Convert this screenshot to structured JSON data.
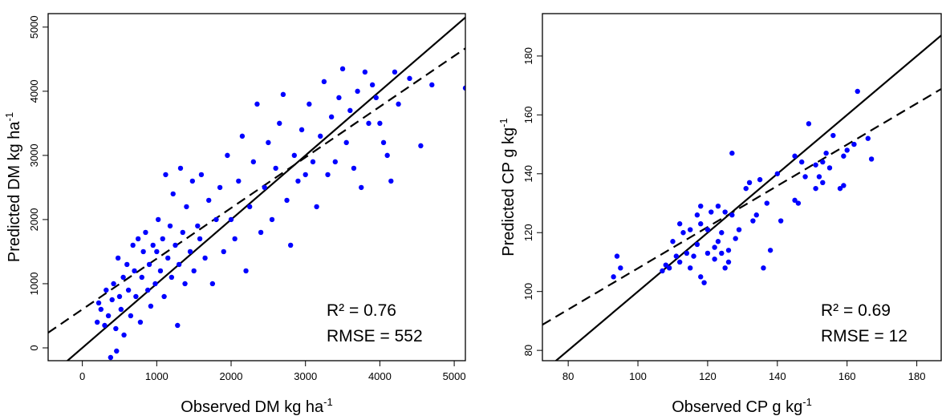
{
  "chart_data": [
    {
      "type": "scatter",
      "color": "#0000ff",
      "xlabel": {
        "text": "Observed DM kg ha",
        "sup": "-1"
      },
      "ylabel": {
        "text": "Predicted DM kg ha",
        "sup": "-1"
      },
      "annotations": [
        "R² = 0.76",
        "RMSE = 552"
      ],
      "xlim": [
        -460,
        5150
      ],
      "ylim": [
        -200,
        5210
      ],
      "xticks": [
        0,
        1000,
        2000,
        3000,
        4000,
        5000
      ],
      "yticks": [
        0,
        1000,
        2000,
        3000,
        4000,
        5000
      ],
      "lines": [
        {
          "slope": 1,
          "intercept": 0,
          "dashed": false
        },
        {
          "slope": 0.79,
          "intercept": 600,
          "dashed": true
        }
      ],
      "x": [
        200,
        220,
        250,
        300,
        320,
        350,
        380,
        400,
        420,
        450,
        460,
        480,
        500,
        520,
        550,
        560,
        600,
        620,
        650,
        680,
        700,
        720,
        750,
        780,
        800,
        820,
        850,
        880,
        900,
        920,
        950,
        980,
        1000,
        1020,
        1050,
        1080,
        1100,
        1120,
        1150,
        1180,
        1200,
        1220,
        1250,
        1280,
        1300,
        1320,
        1350,
        1380,
        1400,
        1450,
        1480,
        1500,
        1550,
        1580,
        1600,
        1650,
        1700,
        1750,
        1800,
        1850,
        1900,
        1950,
        2000,
        2050,
        2100,
        2150,
        2200,
        2250,
        2300,
        2350,
        2400,
        2450,
        2500,
        2550,
        2600,
        2650,
        2700,
        2750,
        2800,
        2850,
        2900,
        2950,
        3000,
        3050,
        3100,
        3150,
        3200,
        3250,
        3300,
        3350,
        3400,
        3450,
        3500,
        3550,
        3600,
        3650,
        3700,
        3750,
        3800,
        3850,
        3900,
        3950,
        4000,
        4050,
        4100,
        4150,
        4200,
        4250,
        4400,
        4550,
        4700,
        5150
      ],
      "values": [
        400,
        700,
        600,
        350,
        900,
        500,
        -150,
        750,
        1000,
        300,
        -50,
        1400,
        800,
        600,
        1100,
        200,
        1300,
        900,
        500,
        1600,
        1200,
        800,
        1700,
        400,
        1100,
        1500,
        1800,
        900,
        1300,
        650,
        1600,
        1000,
        1500,
        2000,
        1200,
        1700,
        800,
        2700,
        1400,
        1900,
        1100,
        2400,
        1600,
        350,
        1300,
        2800,
        1800,
        1000,
        2200,
        1500,
        2600,
        1200,
        1900,
        1700,
        2700,
        1400,
        2300,
        1000,
        2000,
        2500,
        1500,
        3000,
        2000,
        1700,
        2600,
        3300,
        1200,
        2200,
        2900,
        3800,
        1800,
        2500,
        3200,
        2000,
        2800,
        3500,
        3950,
        2300,
        1600,
        3000,
        2600,
        3400,
        2700,
        3800,
        2900,
        2200,
        3300,
        4150,
        2700,
        3600,
        2900,
        3900,
        4350,
        3200,
        3700,
        2800,
        4000,
        2500,
        4300,
        3500,
        4100,
        3900,
        3500,
        3200,
        3000,
        2600,
        4300,
        3800,
        4200,
        3150,
        4100,
        4050
      ]
    },
    {
      "type": "scatter",
      "color": "#0000ff",
      "xlabel": {
        "text": "Observed CP g kg",
        "sup": "-1"
      },
      "ylabel": {
        "text": "Predicted CP g kg",
        "sup": "-1"
      },
      "annotations": [
        "R² = 0.69",
        "RMSE = 12"
      ],
      "xlim": [
        72.6,
        187
      ],
      "ylim": [
        76.5,
        194.4
      ],
      "xticks": [
        80,
        100,
        120,
        140,
        160,
        180
      ],
      "yticks": [
        80,
        100,
        120,
        140,
        160,
        180
      ],
      "lines": [
        {
          "slope": 1,
          "intercept": 0,
          "dashed": false
        },
        {
          "slope": 0.7,
          "intercept": 37.9,
          "dashed": true
        }
      ],
      "x": [
        93,
        94,
        95,
        107,
        108,
        109,
        110,
        111,
        112,
        112,
        113,
        114,
        115,
        115,
        116,
        117,
        117,
        118,
        118,
        118,
        119,
        120,
        120,
        121,
        122,
        122,
        123,
        123,
        124,
        124,
        125,
        125,
        126,
        126,
        127,
        127,
        128,
        129,
        131,
        132,
        133,
        134,
        135,
        136,
        137,
        138,
        140,
        141,
        145,
        145,
        146,
        147,
        148,
        149,
        151,
        151,
        152,
        153,
        153,
        154,
        155,
        156,
        158,
        159,
        159,
        160,
        162,
        163,
        166,
        167
      ],
      "values": [
        105,
        112,
        108,
        107,
        109,
        108,
        117,
        112,
        110,
        123,
        120,
        113,
        108,
        121,
        112,
        116,
        126,
        123,
        129,
        105,
        103,
        113,
        121,
        127,
        115,
        111,
        129,
        117,
        120,
        113,
        127,
        108,
        110,
        114,
        126,
        147,
        118,
        121,
        135,
        137,
        124,
        126,
        138,
        108,
        130,
        114,
        140,
        124,
        146,
        131,
        130,
        144,
        139,
        157,
        135,
        143,
        139,
        144,
        137,
        147,
        142,
        153,
        135,
        136,
        146,
        148,
        150,
        168,
        152,
        145
      ]
    }
  ]
}
